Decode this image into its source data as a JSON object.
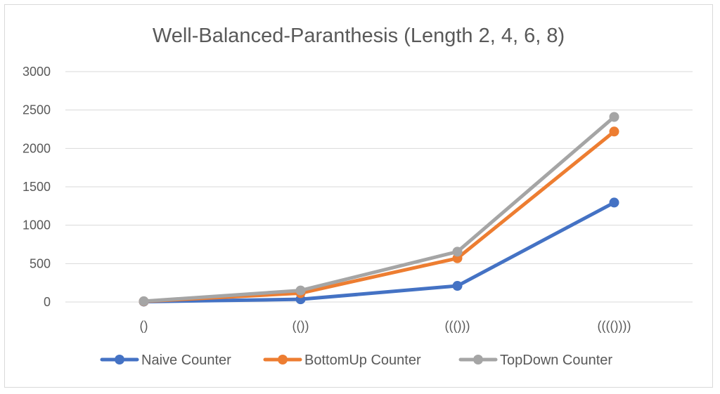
{
  "chart_data": {
    "type": "line",
    "title": "Well-Balanced-Paranthesis (Length 2, 4, 6, 8)",
    "xlabel": "",
    "ylabel": "",
    "categories": [
      "()",
      "(())",
      "((()))",
      "(((())))"
    ],
    "ylim": [
      0,
      3000
    ],
    "yticks": [
      0,
      500,
      1000,
      1500,
      2000,
      2500,
      3000
    ],
    "grid": true,
    "legend_position": "bottom",
    "series": [
      {
        "name": "Naive Counter",
        "color": "#4472c4",
        "values": [
          5,
          35,
          210,
          1295
        ]
      },
      {
        "name": "BottomUp Counter",
        "color": "#ed7d31",
        "values": [
          8,
          115,
          570,
          2220
        ]
      },
      {
        "name": "TopDown Counter",
        "color": "#a5a5a5",
        "values": [
          10,
          150,
          655,
          2410
        ]
      }
    ]
  }
}
